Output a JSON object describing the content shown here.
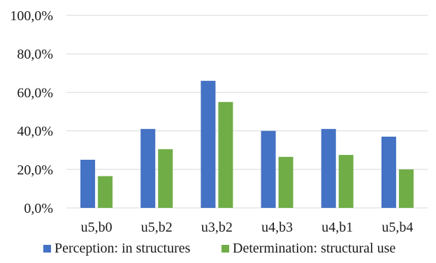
{
  "chart_data": {
    "type": "bar",
    "categories": [
      "u5,b0",
      "u5,b2",
      "u3,b2",
      "u4,b3",
      "u4,b1",
      "u5,b4"
    ],
    "series": [
      {
        "name": "Perception: in structures",
        "color": "#4472C4",
        "values": [
          25.0,
          41.0,
          66.0,
          40.0,
          41.0,
          37.0
        ]
      },
      {
        "name": "Determination: structural use",
        "color": "#70AD47",
        "values": [
          16.5,
          30.5,
          55.0,
          26.5,
          27.5,
          20.0
        ]
      }
    ],
    "title": "",
    "xlabel": "",
    "ylabel": "",
    "ylim": [
      0,
      100
    ],
    "yticks": [
      0,
      20,
      40,
      60,
      80,
      100
    ],
    "ytick_labels": [
      "0,0%",
      "20,0%",
      "40,0%",
      "60,0%",
      "80,0%",
      "100,0%"
    ],
    "grid": true,
    "legend_position": "bottom",
    "gridline_color": "#d9d9d9"
  }
}
